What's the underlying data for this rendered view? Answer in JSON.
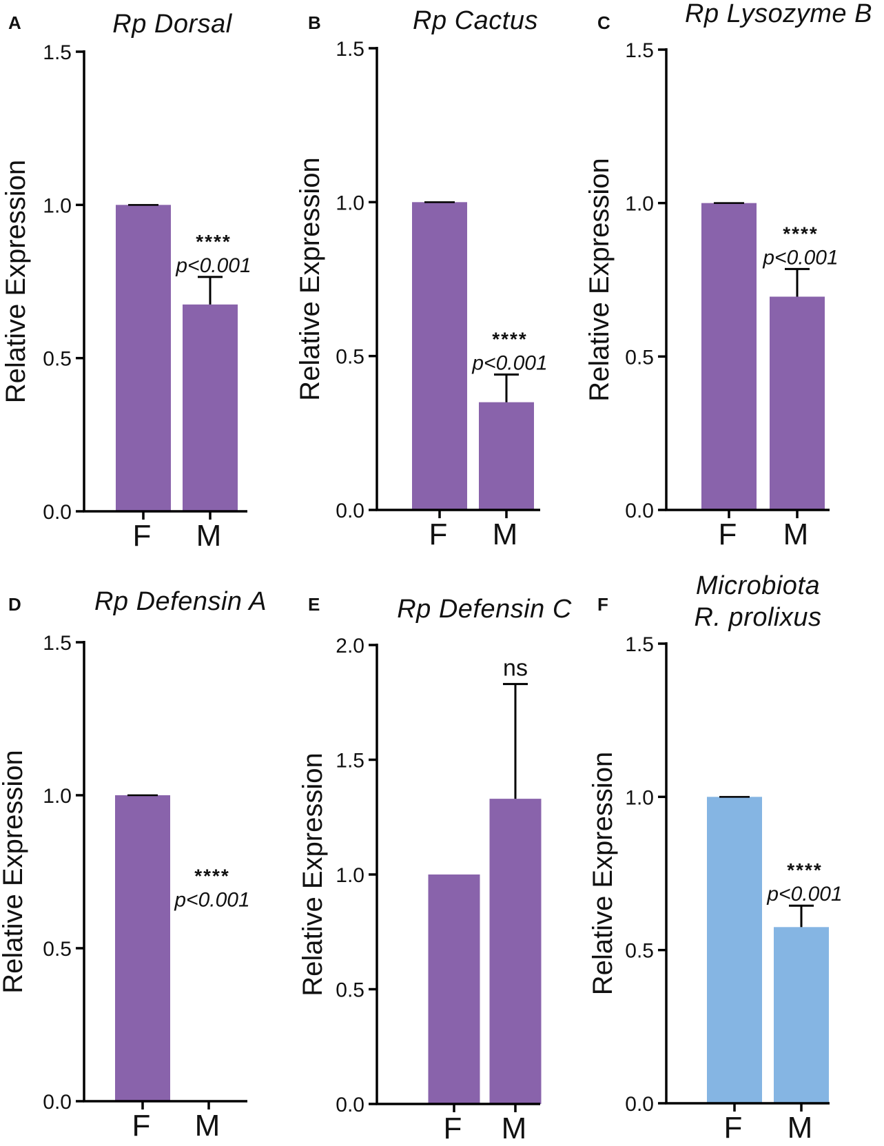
{
  "colors": {
    "purple": "#8963ab",
    "blue": "#85b5e3",
    "axis": "#000000"
  },
  "chart_data": [
    {
      "panel": "A",
      "type": "bar",
      "title": [
        "Rp Dorsal"
      ],
      "ylabel": "Relative Expression",
      "categories": [
        "F",
        "M"
      ],
      "values": [
        1.0,
        0.675
      ],
      "errors": [
        0.0,
        0.09
      ],
      "ylim": [
        0,
        1.5
      ],
      "yticks": [
        0,
        0.5,
        1.0,
        1.5
      ],
      "ytick_labels": [
        "0.0",
        "0.5",
        "1.0",
        "1.5"
      ],
      "significance": {
        "stars": "****",
        "p": "p<0.001"
      },
      "color": "purple"
    },
    {
      "panel": "B",
      "type": "bar",
      "title": [
        "Rp Cactus"
      ],
      "ylabel": "Relative Expression",
      "categories": [
        "F",
        "M"
      ],
      "values": [
        1.0,
        0.35
      ],
      "errors": [
        0.0,
        0.09
      ],
      "ylim": [
        0,
        1.5
      ],
      "yticks": [
        0,
        0.5,
        1.0,
        1.5
      ],
      "ytick_labels": [
        "0.0",
        "0.5",
        "1.0",
        "1.5"
      ],
      "significance": {
        "stars": "****",
        "p": "p<0.001"
      },
      "color": "purple"
    },
    {
      "panel": "C",
      "type": "bar",
      "title": [
        "Rp Lysozyme B"
      ],
      "ylabel": "Relative Expression",
      "categories": [
        "F",
        "M"
      ],
      "values": [
        1.0,
        0.695
      ],
      "errors": [
        0.0,
        0.09
      ],
      "ylim": [
        0,
        1.5
      ],
      "yticks": [
        0,
        0.5,
        1.0,
        1.5
      ],
      "ytick_labels": [
        "0.0",
        "0.5",
        "1.0",
        "1.5"
      ],
      "significance": {
        "stars": "****",
        "p": "p<0.001"
      },
      "color": "purple"
    },
    {
      "panel": "D",
      "type": "bar",
      "title": [
        "Rp Defensin A"
      ],
      "ylabel": "Relative Expression",
      "categories": [
        "F",
        "M"
      ],
      "values": [
        1.0,
        0.0
      ],
      "errors": [
        0.0,
        0.0
      ],
      "ylim": [
        0,
        1.5
      ],
      "yticks": [
        0,
        0.5,
        1.0,
        1.5
      ],
      "ytick_labels": [
        "0.0",
        "0.5",
        "1.0",
        "1.5"
      ],
      "significance": {
        "stars": "****",
        "p": "p<0.001"
      },
      "color": "purple"
    },
    {
      "panel": "E",
      "type": "bar",
      "title": [
        "Rp Defensin C"
      ],
      "ylabel": "Relative Expression",
      "categories": [
        "F",
        "M"
      ],
      "values": [
        1.0,
        1.33
      ],
      "errors": [
        0.0,
        0.5
      ],
      "ylim": [
        0,
        2.0
      ],
      "yticks": [
        0,
        0.5,
        1.0,
        1.5,
        2.0
      ],
      "ytick_labels": [
        "0.0",
        "0.5",
        "1.0",
        "1.5",
        "2.0"
      ],
      "significance": {
        "ns": "ns"
      },
      "color": "purple"
    },
    {
      "panel": "F",
      "type": "bar",
      "title": [
        "Microbiota",
        "R. prolixus"
      ],
      "ylabel": "Relative Expression",
      "categories": [
        "F",
        "M"
      ],
      "values": [
        1.0,
        0.575
      ],
      "errors": [
        0.0,
        0.07
      ],
      "ylim": [
        0,
        1.5
      ],
      "yticks": [
        0,
        0.5,
        1.0,
        1.5
      ],
      "ytick_labels": [
        "0.0",
        "0.5",
        "1.0",
        "1.5"
      ],
      "significance": {
        "stars": "****",
        "p": "p<0.001"
      },
      "color": "blue"
    }
  ]
}
